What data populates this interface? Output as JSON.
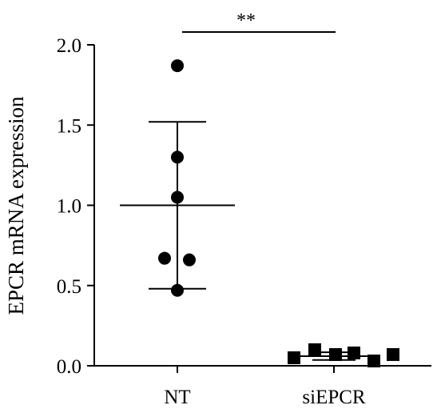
{
  "chart_data": {
    "type": "scatter",
    "title": "",
    "xlabel": "",
    "ylabel": "EPCR mRNA expression",
    "ylim": [
      0,
      2.0
    ],
    "yticks": [
      "0.0",
      "0.5",
      "1.0",
      "1.5",
      "2.0"
    ],
    "categories": [
      "NT",
      "siEPCR"
    ],
    "grid": false,
    "legend": "none",
    "groups": [
      {
        "category": "NT",
        "marker": "circle",
        "points": [
          1.87,
          1.3,
          1.05,
          0.67,
          0.66,
          0.47
        ],
        "mean": 1.0,
        "sd": 0.52
      },
      {
        "category": "siEPCR",
        "marker": "square",
        "points": [
          0.05,
          0.1,
          0.07,
          0.08,
          0.03,
          0.07
        ],
        "mean": 0.06,
        "sd": 0.024
      }
    ],
    "significance": {
      "label": "**",
      "between": [
        "NT",
        "siEPCR"
      ]
    },
    "colors": {
      "marks": "#000000",
      "background": "#ffffff"
    }
  }
}
